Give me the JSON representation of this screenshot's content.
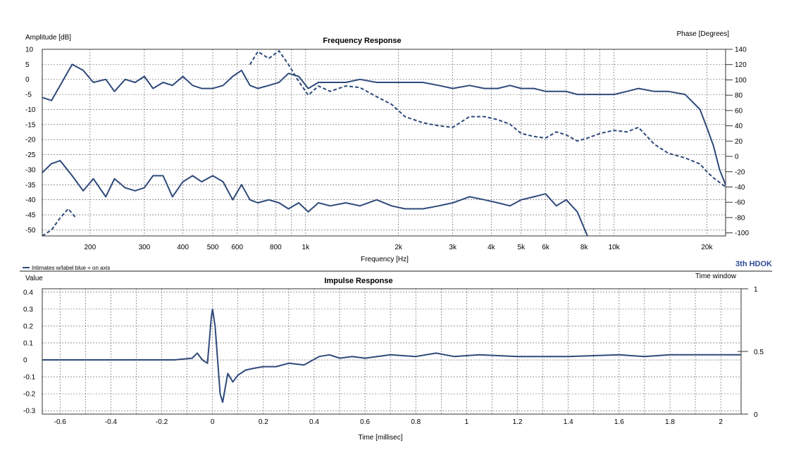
{
  "colors": {
    "trace": "#2e4a7a",
    "grid": "#333333",
    "text": "#222222",
    "brand": "#2e4a9a"
  },
  "divider_note": "Intimates w/label blue = on axis",
  "brand_text": "3th HDOK",
  "chart_data": [
    {
      "type": "line",
      "title": "Frequency Response",
      "xlabel": "Frequency [Hz]",
      "ylabel": "Amplitude [dB]",
      "y2label": "Phase [Degrees]",
      "xscale": "log",
      "xlim": [
        140,
        23000
      ],
      "ylim": [
        -52,
        10
      ],
      "y2lim": [
        -104,
        140
      ],
      "xticks": [
        200,
        300,
        400,
        500,
        600,
        800,
        1000,
        2000,
        3000,
        4000,
        5000,
        6000,
        8000,
        10000,
        20000
      ],
      "xtick_labels": [
        "200",
        "300",
        "400",
        "500",
        "600",
        "800",
        "1k",
        "2k",
        "3k",
        "4k",
        "5k",
        "6k",
        "8k",
        "10k",
        "20k"
      ],
      "yticks": [
        10,
        5,
        0,
        -5,
        -10,
        -15,
        -20,
        -25,
        -30,
        -35,
        -40,
        -45,
        -50
      ],
      "y2ticks": [
        140,
        120,
        100,
        80,
        60,
        40,
        20,
        0,
        -20,
        -40,
        -60,
        -80,
        -100
      ],
      "grid": true,
      "series": [
        {
          "axis": "left",
          "style": "solid",
          "x": [
            140,
            150,
            160,
            175,
            190,
            205,
            225,
            240,
            260,
            280,
            300,
            320,
            345,
            370,
            400,
            430,
            460,
            500,
            540,
            580,
            620,
            660,
            700,
            760,
            820,
            880,
            950,
            1020,
            1100,
            1200,
            1350,
            1500,
            1700,
            1900,
            2100,
            2400,
            2700,
            3000,
            3400,
            3800,
            4200,
            4600,
            5000,
            5500,
            6000,
            6500,
            7000,
            7600,
            8200,
            9000,
            10000,
            11000,
            12000,
            13500,
            15000,
            17000,
            19000,
            20000,
            21000,
            22000,
            23000
          ],
          "y": [
            -6,
            -7,
            -2,
            5,
            3,
            -1,
            0,
            -4,
            0,
            -1,
            1,
            -3,
            -1,
            -2,
            1,
            -2,
            -3,
            -3,
            -2,
            1,
            3,
            -2,
            -3,
            -2,
            -1,
            2,
            1,
            -3,
            -1,
            -1,
            -1,
            0,
            -1,
            -1,
            -1,
            -1,
            -2,
            -3,
            -2,
            -3,
            -3,
            -2,
            -3,
            -3,
            -4,
            -4,
            -4,
            -5,
            -5,
            -5,
            -5,
            -4,
            -3,
            -4,
            -4,
            -5,
            -10,
            -16,
            -22,
            -30,
            -35
          ]
        },
        {
          "axis": "left",
          "style": "solid",
          "x": [
            140,
            150,
            160,
            175,
            190,
            205,
            225,
            240,
            260,
            280,
            300,
            320,
            345,
            370,
            400,
            430,
            460,
            500,
            540,
            580,
            620,
            660,
            700,
            760,
            820,
            880,
            950,
            1020,
            1100,
            1200,
            1350,
            1500,
            1700,
            1900,
            2100,
            2400,
            2700,
            3000,
            3400,
            3800,
            4200,
            4600,
            5000,
            5500,
            6000,
            6500,
            7000,
            7600,
            8200
          ],
          "y": [
            -31,
            -28,
            -27,
            -32,
            -37,
            -33,
            -39,
            -33,
            -36,
            -37,
            -36,
            -32,
            -32,
            -39,
            -34,
            -32,
            -34,
            -32,
            -34,
            -40,
            -35,
            -40,
            -41,
            -40,
            -41,
            -43,
            -41,
            -44,
            -41,
            -42,
            -41,
            -42,
            -40,
            -42,
            -43,
            -43,
            -42,
            -41,
            -39,
            -40,
            -41,
            -42,
            -40,
            -39,
            -38,
            -42,
            -40,
            -44,
            -52
          ]
        },
        {
          "axis": "right",
          "style": "dashed",
          "x": [
            660,
            700,
            760,
            820,
            880,
            950,
            1020,
            1100,
            1200,
            1350,
            1500,
            1700,
            1900,
            2100,
            2400,
            2700,
            3000,
            3400,
            3800,
            4200,
            4600,
            5000,
            5500,
            6000,
            6500,
            7000,
            7600,
            8200,
            9000,
            10000,
            11000,
            12000,
            13500,
            15000,
            17000,
            19000,
            20000,
            21000,
            22000,
            23000
          ],
          "y": [
            120,
            137,
            128,
            138,
            120,
            98,
            80,
            92,
            85,
            92,
            90,
            78,
            68,
            52,
            44,
            40,
            38,
            52,
            52,
            48,
            42,
            30,
            26,
            24,
            32,
            28,
            20,
            24,
            30,
            34,
            32,
            38,
            16,
            4,
            -2,
            -10,
            -20,
            -28,
            -34,
            -40
          ]
        },
        {
          "axis": "left",
          "style": "dashed",
          "x": [
            140,
            150,
            160,
            170,
            180
          ],
          "y": [
            -52,
            -50,
            -46,
            -43,
            -46
          ]
        }
      ]
    },
    {
      "type": "line",
      "title": "Impulse Response",
      "xlabel": "Time [millisec]",
      "ylabel": "Value",
      "y2label": "Time window",
      "xlim": [
        -0.67,
        2.08
      ],
      "ylim": [
        -0.32,
        0.42
      ],
      "y2lim": [
        0,
        1
      ],
      "xticks": [
        -0.6,
        -0.4,
        -0.2,
        0,
        0.2,
        0.4,
        0.6,
        0.8,
        1,
        1.2,
        1.4,
        1.6,
        1.8,
        2
      ],
      "xtick_labels": [
        "-0.6",
        "-0.4",
        "-0.2",
        "0",
        "0.2",
        "0.4",
        "0.6",
        "0.8",
        "1",
        "1.2",
        "1.4",
        "1.6",
        "1.8",
        "2"
      ],
      "yticks": [
        0.4,
        0.3,
        0.2,
        0.1,
        0,
        -0.1,
        -0.2,
        -0.3
      ],
      "ytick_labels": [
        "0.4",
        "0.3",
        "0.2",
        "0.1",
        "0",
        "-0.1",
        "-0.2",
        "-0.3"
      ],
      "y2ticks": [
        1,
        0.5,
        0
      ],
      "y2tick_labels": [
        "1",
        "0.5",
        "0"
      ],
      "grid": true,
      "series": [
        {
          "axis": "left",
          "style": "solid",
          "x": [
            -0.67,
            -0.15,
            -0.08,
            -0.06,
            -0.04,
            -0.02,
            -0.005,
            0,
            0.01,
            0.02,
            0.03,
            0.04,
            0.06,
            0.08,
            0.1,
            0.13,
            0.16,
            0.2,
            0.25,
            0.3,
            0.36,
            0.42,
            0.46,
            0.5,
            0.55,
            0.6,
            0.7,
            0.8,
            0.88,
            0.95,
            1.05,
            1.2,
            1.4,
            1.6,
            1.7,
            1.8,
            2.08
          ],
          "y": [
            0,
            0,
            0.01,
            0.04,
            0,
            -0.02,
            0.25,
            0.3,
            0.2,
            0,
            -0.2,
            -0.25,
            -0.08,
            -0.13,
            -0.09,
            -0.06,
            -0.05,
            -0.04,
            -0.04,
            -0.02,
            -0.03,
            0.02,
            0.03,
            0.01,
            0.02,
            0.01,
            0.03,
            0.02,
            0.04,
            0.02,
            0.03,
            0.02,
            0.02,
            0.03,
            0.02,
            0.03,
            0.03
          ]
        }
      ]
    }
  ]
}
